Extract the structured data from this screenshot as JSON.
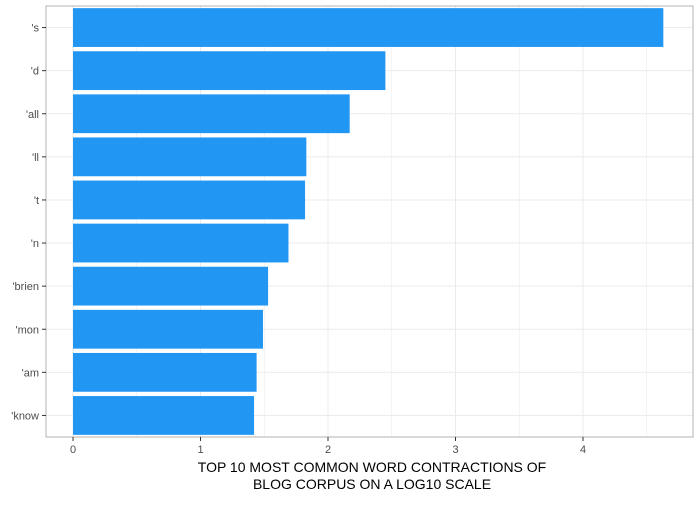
{
  "chart_data": {
    "type": "bar",
    "orientation": "horizontal",
    "categories": [
      "'s",
      "'d",
      "'all",
      "'ll",
      "'t",
      "'n",
      "'brien",
      "'mon",
      "'am",
      "'know"
    ],
    "values": [
      4.63,
      2.45,
      2.17,
      1.83,
      1.82,
      1.69,
      1.53,
      1.49,
      1.44,
      1.42
    ],
    "title": "",
    "xlabel_lines": [
      "TOP 10 MOST COMMON WORD CONTRACTIONS OF",
      "BLOG CORPUS ON A LOG10 SCALE"
    ],
    "ylabel": "",
    "xlim": [
      0,
      4.63
    ],
    "x_ticks": [
      0,
      1,
      2,
      3,
      4
    ],
    "grid": true,
    "legend": "none",
    "bar_color": "#2196F3",
    "grid_color": "#ebebeb",
    "panel_border_color": "#b3b3b3"
  }
}
